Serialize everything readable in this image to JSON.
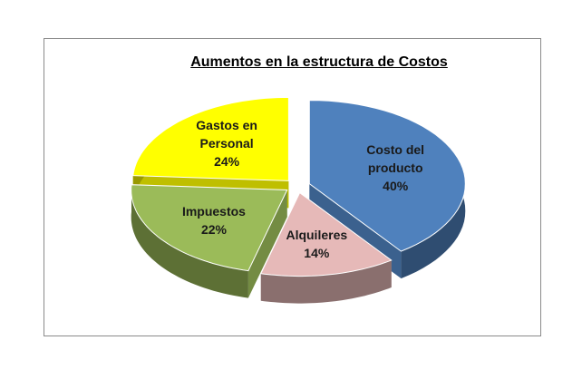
{
  "chart_data": {
    "type": "pie",
    "title": "Aumentos en la estructura de Costos",
    "categories": [
      "Costo del producto",
      "Alquileres",
      "Impuestos",
      "Gastos en Personal"
    ],
    "values": [
      40,
      14,
      22,
      24
    ],
    "value_labels": [
      "40%",
      "14%",
      "22%",
      "24%"
    ],
    "colors": [
      "#4f81bd",
      "#e6b9b8",
      "#9bbb59",
      "#ffff00"
    ]
  }
}
